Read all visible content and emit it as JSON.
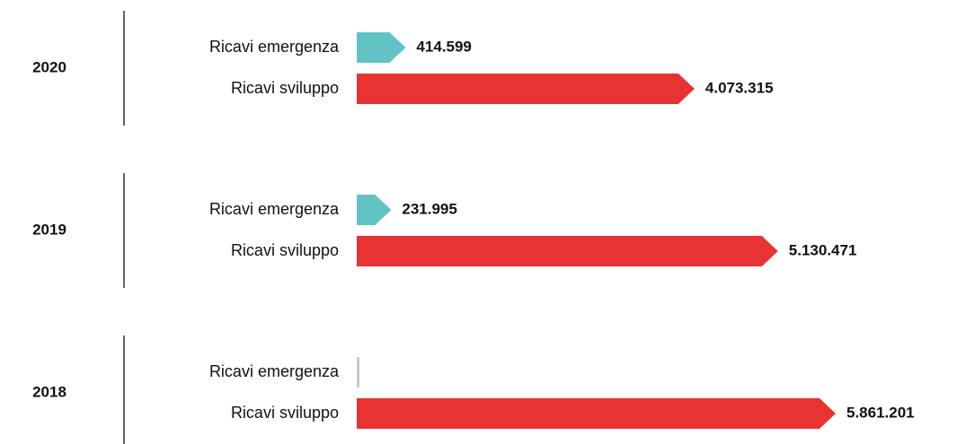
{
  "chart_data": {
    "type": "bar",
    "orientation": "horizontal",
    "categories": [
      "2020",
      "2019",
      "2018"
    ],
    "series": [
      {
        "name": "Ricavi emergenza",
        "color": "#62c3c5",
        "values": [
          414599,
          231995,
          0
        ],
        "value_labels": [
          "414.599",
          "231.995",
          null
        ]
      },
      {
        "name": "Ricavi sviluppo",
        "color": "#e83333",
        "values": [
          4073315,
          5130471,
          5861201
        ],
        "value_labels": [
          "4.073.315",
          "5.130.471",
          "5.861.201"
        ]
      }
    ],
    "zero_color": "#c8c8c8"
  }
}
